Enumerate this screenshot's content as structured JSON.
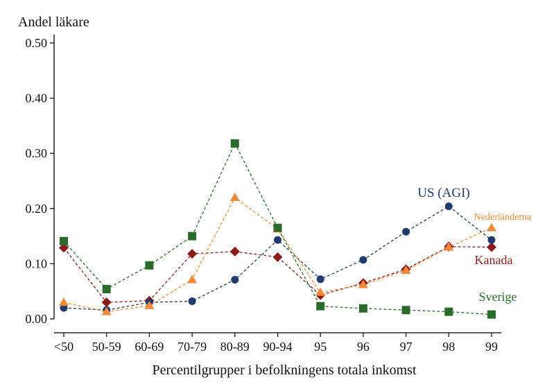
{
  "chart_data": {
    "type": "line",
    "ylabel": "Andel läkare",
    "xlabel": "Percentilgrupper i befolkningens totala inkomst",
    "ylim": [
      0,
      0.5
    ],
    "yticks": [
      "0.00",
      "0.10",
      "0.20",
      "0.30",
      "0.40",
      "0.50"
    ],
    "ytick_values": [
      0,
      0.1,
      0.2,
      0.3,
      0.4,
      0.5
    ],
    "categories": [
      "<50",
      "50-59",
      "60-69",
      "70-79",
      "80-89",
      "90-94",
      "95",
      "96",
      "97",
      "98",
      "99"
    ],
    "grid": false,
    "series": [
      {
        "name": "US (AGI)",
        "color": "#1f3a6b",
        "marker": "circle",
        "values": [
          0.02,
          0.016,
          0.03,
          0.032,
          0.071,
          0.143,
          0.072,
          0.107,
          0.158,
          0.204,
          0.143
        ]
      },
      {
        "name": "Nederländerna",
        "color": "#f08a3b",
        "marker": "triangle",
        "values": [
          0.03,
          0.013,
          0.024,
          0.071,
          0.22,
          0.163,
          0.048,
          0.062,
          0.088,
          0.13,
          0.165
        ]
      },
      {
        "name": "Kanada",
        "color": "#8b1a1a",
        "marker": "diamond",
        "values": [
          0.129,
          0.03,
          0.033,
          0.118,
          0.122,
          0.112,
          0.043,
          0.065,
          0.09,
          0.131,
          0.13
        ]
      },
      {
        "name": "Sverige",
        "color": "#2a6b2a",
        "marker": "square",
        "values": [
          0.141,
          0.054,
          0.097,
          0.15,
          0.318,
          0.165,
          0.023,
          0.019,
          0.016,
          0.013,
          0.008
        ]
      }
    ]
  }
}
